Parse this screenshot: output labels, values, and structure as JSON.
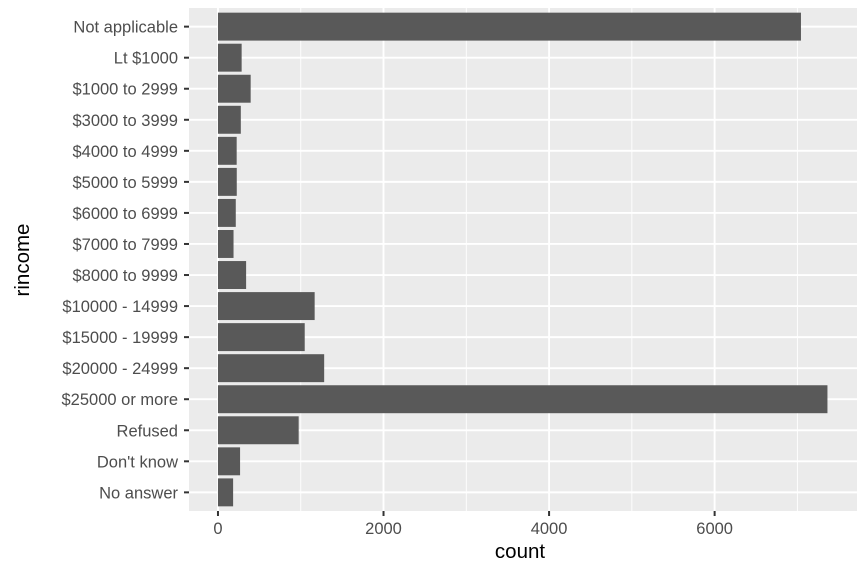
{
  "chart_data": {
    "type": "bar",
    "orientation": "horizontal",
    "xlabel": "count",
    "ylabel": "rincome",
    "xlim": [
      -350,
      7720
    ],
    "xticks": [
      0,
      2000,
      4000,
      6000
    ],
    "xtick_labels": [
      "0",
      "2000",
      "4000",
      "6000"
    ],
    "minor_xticks": [
      1000,
      3000,
      5000,
      7000
    ],
    "categories": [
      "Not applicable",
      "Lt $1000",
      "$1000 to 2999",
      "$3000 to 3999",
      "$4000 to 4999",
      "$5000 to 5999",
      "$6000 to 6999",
      "$7000 to 7999",
      "$8000 to 9999",
      "$10000 - 14999",
      "$15000 - 19999",
      "$20000 - 24999",
      "$25000 or more",
      "Refused",
      "Don't know",
      "No answer"
    ],
    "values": [
      7043,
      286,
      395,
      276,
      226,
      227,
      215,
      188,
      340,
      1168,
      1048,
      1283,
      7363,
      975,
      267,
      183
    ],
    "grid": true,
    "legend": "none",
    "colors": {
      "panel": "#ebebeb",
      "grid": "#ffffff",
      "bar": "#595959",
      "tick_text": "#4d4d4d",
      "tick_mark": "#333333",
      "title_text": "#000000"
    }
  }
}
